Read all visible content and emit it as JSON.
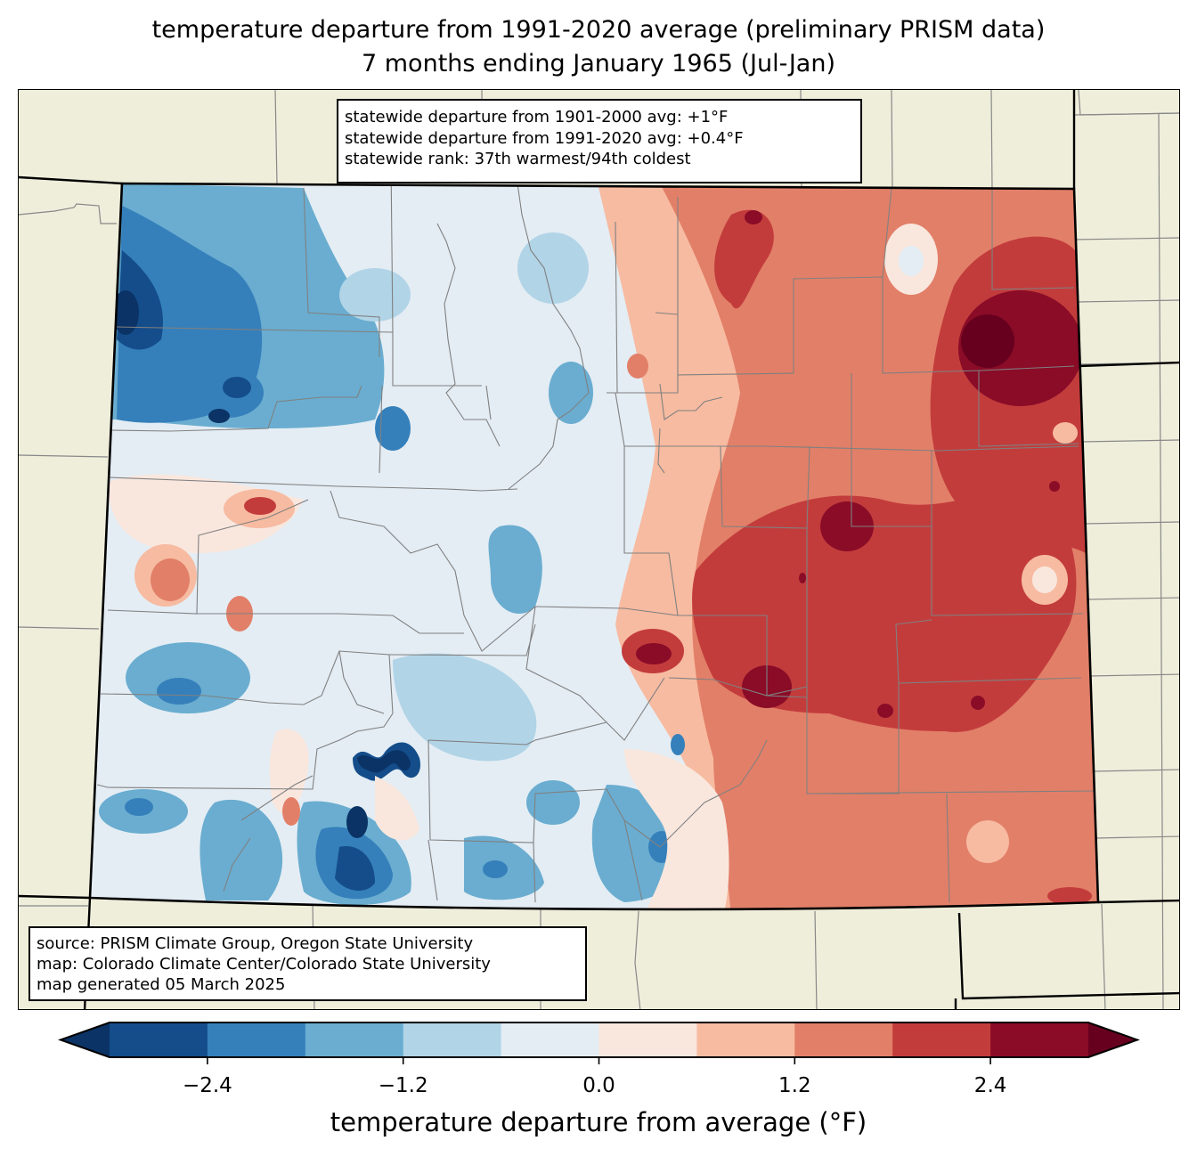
{
  "title": {
    "line1": "temperature departure from 1991-2020 average (preliminary PRISM data)",
    "line2": "7 months ending January 1965 (Jul-Jan)"
  },
  "stats_box": {
    "lines": [
      "statewide departure from 1901-2000 avg: +1°F",
      "statewide departure from 1991-2020 avg: +0.4°F",
      "statewide rank: 37th warmest/94th coldest"
    ]
  },
  "credit_box": {
    "lines": [
      "source: PRISM Climate Group, Oregon State University",
      "map: Colorado Climate Center/Colorado State University",
      "map generated 05 March 2025"
    ]
  },
  "colors": {
    "land_background": "#efeedb",
    "state_border": "#000000",
    "county_border": "#808080"
  },
  "chart_data": {
    "type": "heatmap",
    "title": "temperature departure from 1991-2020 average (preliminary PRISM data) — 7 months ending January 1965 (Jul-Jan)",
    "region": "Colorado",
    "colorbar": {
      "label": "temperature departure from average (°F)",
      "levels": [
        -3.0,
        -2.4,
        -1.8,
        -1.2,
        -0.6,
        0.0,
        0.6,
        1.2,
        1.8,
        2.4,
        3.0
      ],
      "colors": [
        "#144d8a",
        "#3580bb",
        "#6aadd0",
        "#b1d4e7",
        "#e4edf4",
        "#f9e7de",
        "#f7bba1",
        "#e27f68",
        "#c33c3c",
        "#8a0c27"
      ],
      "under_color": "#0b3366",
      "over_color": "#67001f",
      "extend": "both",
      "tick_values": [
        -2.4,
        -1.2,
        0.0,
        1.2,
        2.4
      ],
      "tick_labels": [
        "−2.4",
        "−1.2",
        "0.0",
        "1.2",
        "2.4"
      ]
    },
    "pattern_summary": {
      "west": "mostly below average (−0.6 to −2.4°F), coldest in the northwest and San Juan mountains (below −3.0°F locally)",
      "central_mountains": "near average, mix of slightly below and slightly above",
      "eastern_plains": "above average (+0.6 to +2.4°F), warmest in the northeast near Yuma/Kit Carson counties (above +3.0°F)"
    }
  }
}
